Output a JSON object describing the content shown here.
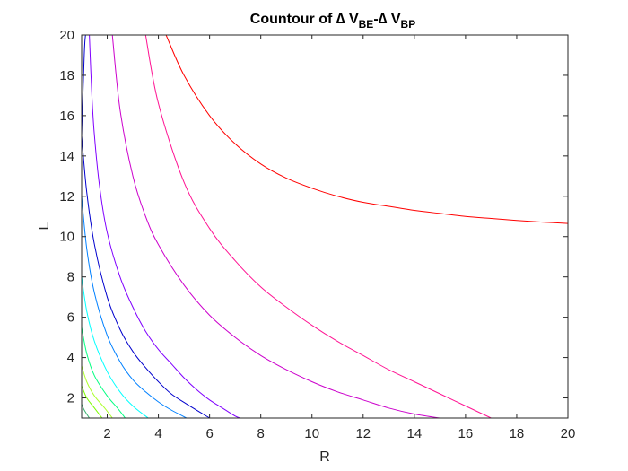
{
  "chart_data": {
    "type": "line",
    "title": {
      "prefix": "Countour of ∆ V",
      "sub1": "BE",
      "mid": "-∆ V",
      "sub2": "BP"
    },
    "xlabel": "R",
    "ylabel": "L",
    "xlim": [
      1,
      20
    ],
    "ylim": [
      1,
      20
    ],
    "xticks": [
      2,
      4,
      6,
      8,
      10,
      12,
      14,
      16,
      18,
      20
    ],
    "yticks": [
      2,
      4,
      6,
      8,
      10,
      12,
      14,
      16,
      18,
      20
    ],
    "grid": false,
    "legend": "none",
    "series": [
      {
        "color": "#3cb371",
        "points": [
          [
            1.0,
            1.7
          ],
          [
            1.1,
            1.4
          ],
          [
            1.3,
            1.0
          ]
        ]
      },
      {
        "color": "#7cfc00",
        "points": [
          [
            1.0,
            2.6
          ],
          [
            1.2,
            2.0
          ],
          [
            1.5,
            1.5
          ],
          [
            1.8,
            1.0
          ]
        ]
      },
      {
        "color": "#adff2f",
        "points": [
          [
            1.0,
            3.6
          ],
          [
            1.2,
            2.8
          ],
          [
            1.5,
            2.1
          ],
          [
            1.9,
            1.5
          ],
          [
            2.2,
            1.0
          ]
        ]
      },
      {
        "color": "#00ff80",
        "points": [
          [
            1.0,
            5.5
          ],
          [
            1.2,
            4.2
          ],
          [
            1.5,
            3.1
          ],
          [
            2.0,
            2.1
          ],
          [
            2.4,
            1.5
          ],
          [
            2.7,
            1.0
          ]
        ]
      },
      {
        "color": "#00ffff",
        "points": [
          [
            1.0,
            8.0
          ],
          [
            1.2,
            6.3
          ],
          [
            1.5,
            4.8
          ],
          [
            2.0,
            3.3
          ],
          [
            2.5,
            2.3
          ],
          [
            3.0,
            1.6
          ],
          [
            3.6,
            1.0
          ]
        ]
      },
      {
        "color": "#0080ff",
        "points": [
          [
            1.0,
            12.0
          ],
          [
            1.2,
            9.4
          ],
          [
            1.5,
            7.2
          ],
          [
            2.0,
            5.1
          ],
          [
            2.5,
            3.8
          ],
          [
            3.0,
            2.9
          ],
          [
            3.5,
            2.3
          ],
          [
            4.0,
            1.8
          ],
          [
            4.5,
            1.4
          ],
          [
            5.1,
            1.0
          ]
        ]
      },
      {
        "color": "#0000cd",
        "points": [
          [
            1.0,
            15.0
          ],
          [
            1.1,
            19.0
          ],
          [
            1.15,
            20.0
          ]
        ]
      },
      {
        "color": "#0000cd",
        "points": [
          [
            1.0,
            15.0
          ],
          [
            1.2,
            12.2
          ],
          [
            1.5,
            9.6
          ],
          [
            2.0,
            7.0
          ],
          [
            2.5,
            5.4
          ],
          [
            3.0,
            4.3
          ],
          [
            3.5,
            3.5
          ],
          [
            4.0,
            2.8
          ],
          [
            4.5,
            2.2
          ],
          [
            5.1,
            1.7
          ],
          [
            6.0,
            1.0
          ]
        ]
      },
      {
        "color": "#8000ff",
        "points": [
          [
            1.3,
            20.0
          ],
          [
            1.4,
            17.0
          ],
          [
            1.5,
            15.0
          ],
          [
            1.7,
            12.5
          ],
          [
            2.0,
            10.2
          ],
          [
            2.5,
            8.0
          ],
          [
            3.0,
            6.5
          ],
          [
            3.5,
            5.3
          ],
          [
            4.0,
            4.4
          ],
          [
            4.5,
            3.7
          ],
          [
            5.0,
            3.0
          ],
          [
            5.5,
            2.4
          ],
          [
            6.0,
            1.9
          ],
          [
            6.5,
            1.5
          ],
          [
            7.0,
            1.1
          ],
          [
            7.2,
            1.0
          ]
        ]
      },
      {
        "color": "#cc00cc",
        "points": [
          [
            2.2,
            20.0
          ],
          [
            2.5,
            16.3
          ],
          [
            3.0,
            13.0
          ],
          [
            3.5,
            11.0
          ],
          [
            4.0,
            9.6
          ],
          [
            5.0,
            7.6
          ],
          [
            6.0,
            6.1
          ],
          [
            7.0,
            5.0
          ],
          [
            8.0,
            4.1
          ],
          [
            9.0,
            3.4
          ],
          [
            10.0,
            2.8
          ],
          [
            11.0,
            2.3
          ],
          [
            12.0,
            1.9
          ],
          [
            13.0,
            1.5
          ],
          [
            14.0,
            1.2
          ],
          [
            15.0,
            1.0
          ]
        ]
      },
      {
        "color": "#ff1493",
        "points": [
          [
            3.5,
            20.0
          ],
          [
            4.0,
            16.6
          ],
          [
            5.0,
            12.7
          ],
          [
            6.0,
            10.4
          ],
          [
            7.0,
            8.8
          ],
          [
            8.0,
            7.5
          ],
          [
            9.0,
            6.5
          ],
          [
            10.0,
            5.6
          ],
          [
            11.0,
            4.8
          ],
          [
            12.0,
            4.1
          ],
          [
            13.0,
            3.4
          ],
          [
            14.0,
            2.8
          ],
          [
            15.0,
            2.2
          ],
          [
            16.0,
            1.6
          ],
          [
            17.0,
            1.0
          ]
        ]
      },
      {
        "color": "#ff0000",
        "points": [
          [
            4.3,
            20.0
          ],
          [
            5.0,
            18.0
          ],
          [
            6.0,
            16.0
          ],
          [
            7.0,
            14.6
          ],
          [
            8.0,
            13.6
          ],
          [
            9.0,
            12.9
          ],
          [
            10.0,
            12.4
          ],
          [
            11.0,
            12.0
          ],
          [
            12.0,
            11.7
          ],
          [
            13.0,
            11.5
          ],
          [
            14.0,
            11.3
          ],
          [
            15.0,
            11.15
          ],
          [
            16.0,
            11.0
          ],
          [
            17.0,
            10.9
          ],
          [
            18.0,
            10.8
          ],
          [
            19.0,
            10.72
          ],
          [
            20.0,
            10.65
          ]
        ]
      }
    ]
  }
}
